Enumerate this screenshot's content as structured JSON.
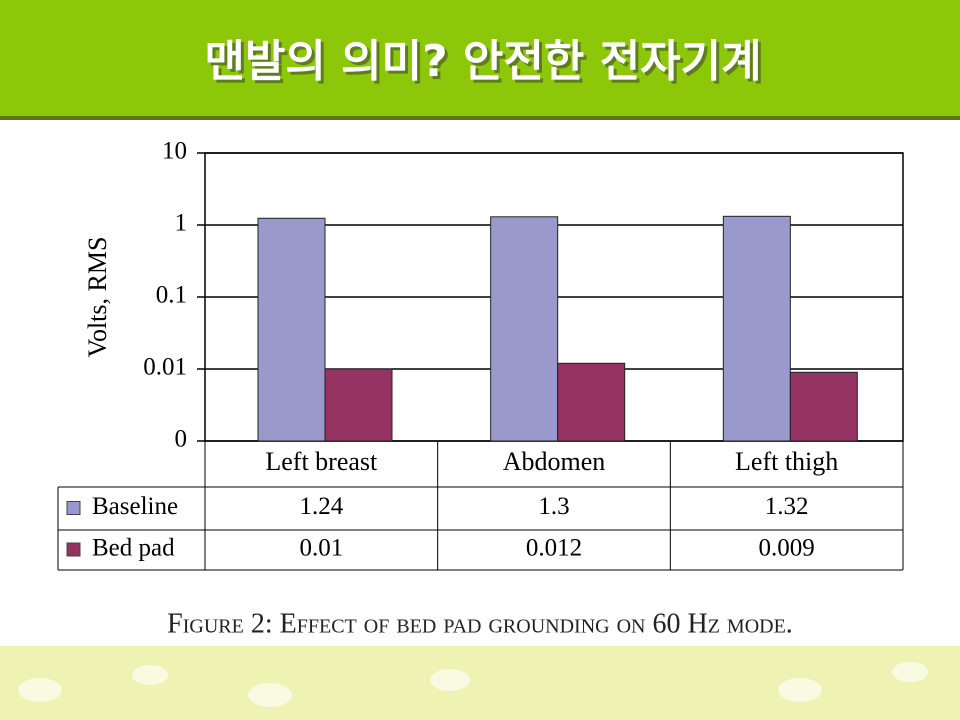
{
  "header": {
    "title": "맨발의 의미? 안전한 전자기계"
  },
  "chart_data": {
    "type": "bar",
    "ylabel": "Volts, RMS",
    "categories": [
      "Left breast",
      "Abdomen",
      "Left thigh"
    ],
    "series": [
      {
        "name": "Baseline",
        "color": "#9999cc",
        "values": [
          1.24,
          1.3,
          1.32
        ]
      },
      {
        "name": "Bed pad",
        "color": "#953462",
        "values": [
          0.01,
          0.012,
          0.009
        ]
      }
    ],
    "ylim": [
      0.001,
      10
    ],
    "yticks": [
      {
        "value": 0.001,
        "label": "0"
      },
      0.01,
      0.1,
      1,
      10
    ],
    "log_scale": true,
    "grid": true,
    "caption": "Figure 2: Effect of bed pad grounding on 60 Hz mode."
  }
}
